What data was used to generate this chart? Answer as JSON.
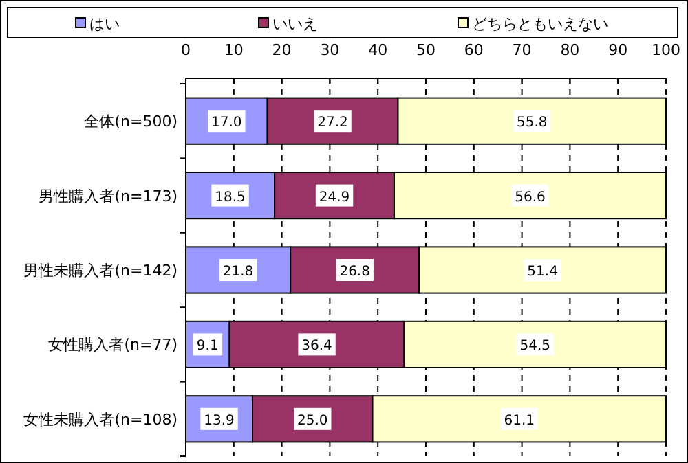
{
  "chart_data": {
    "type": "bar",
    "orientation": "horizontal",
    "stacked": true,
    "grid": "x",
    "legend": "top",
    "categories": [
      "全体(n=500)",
      "男性購入者(n=173)",
      "男性未購入者(n=142)",
      "女性購入者(n=77)",
      "女性未購入者(n=108)"
    ],
    "series": [
      {
        "name": "はい",
        "color": "#9999ff",
        "values": [
          17.0,
          18.5,
          21.8,
          9.1,
          13.9
        ],
        "value_labels": [
          "17.0",
          "18.5",
          "21.8",
          "9.1",
          "13.9"
        ]
      },
      {
        "name": "いいえ",
        "color": "#993366",
        "values": [
          27.2,
          24.9,
          26.8,
          36.4,
          25.0
        ],
        "value_labels": [
          "27.2",
          "24.9",
          "26.8",
          "36.4",
          "25.0"
        ]
      },
      {
        "name": "どちらともいえない",
        "color": "#ffffcc",
        "values": [
          55.8,
          56.6,
          51.4,
          54.5,
          61.1
        ],
        "value_labels": [
          "55.8",
          "56.6",
          "51.4",
          "54.5",
          "61.1"
        ]
      }
    ],
    "xlim": [
      0,
      100
    ],
    "xticks": [
      0,
      10,
      20,
      30,
      40,
      50,
      60,
      70,
      80,
      90,
      100
    ]
  }
}
